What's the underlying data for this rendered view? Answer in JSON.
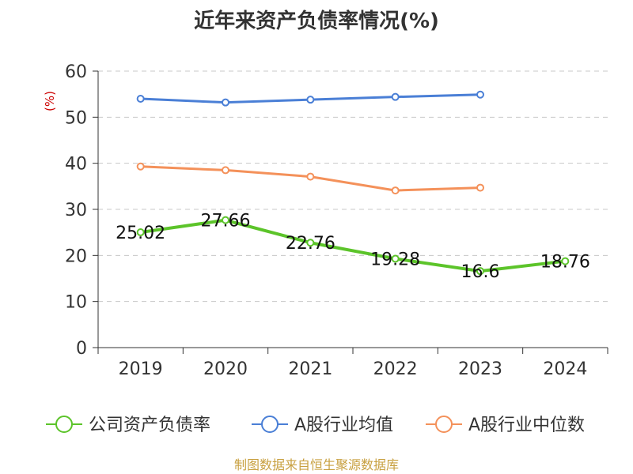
{
  "chart_data": {
    "type": "line",
    "title": "近年来资产负债率情况(%)",
    "ylabel": "(%)",
    "xlabel": "",
    "categories": [
      "2019",
      "2020",
      "2021",
      "2022",
      "2023",
      "2024"
    ],
    "ylim": [
      0,
      60
    ],
    "yticks": [
      0,
      10,
      20,
      30,
      40,
      50,
      60
    ],
    "grid": true,
    "legend_position": "bottom",
    "series": [
      {
        "name": "公司资产负债率",
        "color": "#5cc42a",
        "values": [
          25.02,
          27.66,
          22.76,
          19.28,
          16.6,
          18.76
        ],
        "labels": [
          "25.02",
          "27.66",
          "22.76",
          "19.28",
          "16.6",
          "18.76"
        ]
      },
      {
        "name": "A股行业均值",
        "color": "#4a7fd6",
        "values": [
          54.0,
          53.2,
          53.8,
          54.4,
          54.9,
          null
        ]
      },
      {
        "name": "A股行业中位数",
        "color": "#f4915a",
        "values": [
          39.3,
          38.5,
          37.1,
          34.1,
          34.7,
          null
        ]
      }
    ]
  },
  "source": "制图数据来自恒生聚源数据库"
}
